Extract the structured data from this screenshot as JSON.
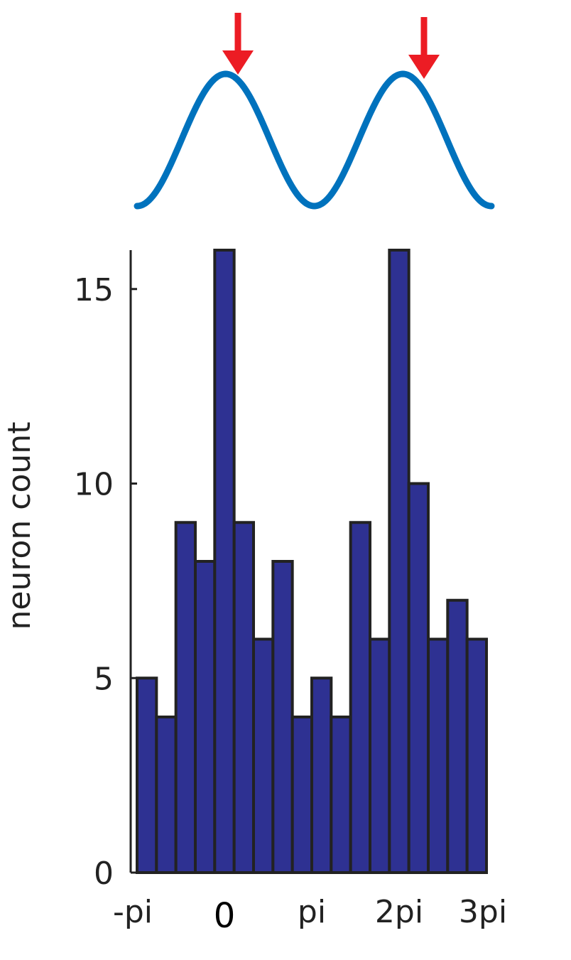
{
  "chart_data": {
    "type": "bar",
    "ylabel": "neuron count",
    "xlabel": "",
    "ylim": [
      0,
      16
    ],
    "yticks": [
      0,
      5,
      10,
      15
    ],
    "x_tick_labels": [
      "-pi",
      "0",
      "pi",
      "2pi",
      "3pi"
    ],
    "values": [
      5,
      4,
      9,
      8,
      16,
      9,
      6,
      8,
      4,
      5,
      4,
      9,
      6,
      16,
      10,
      6,
      7,
      6
    ],
    "bar_color": "#2e3192",
    "bar_edge_color": "#222222",
    "top_waveform": {
      "type": "cosine",
      "color": "#0072bd",
      "peaks": 2,
      "markers": "downward arrows just right of each peak",
      "marker_color": "#ec1c24"
    },
    "grid": false,
    "legend": "none"
  }
}
